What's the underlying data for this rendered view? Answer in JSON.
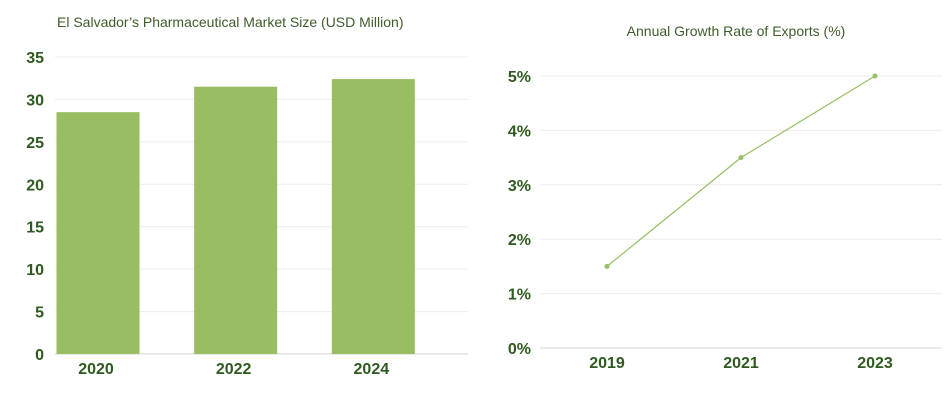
{
  "chart_data": [
    {
      "type": "bar",
      "title": "El Salvador’s Pharmaceutical Market Size (USD Million)",
      "categories": [
        "2020",
        "2022",
        "2024"
      ],
      "values": [
        28.5,
        31.5,
        32.4
      ],
      "ylim": [
        0,
        35
      ],
      "yticks": [
        "0",
        "5",
        "10",
        "15",
        "20",
        "25",
        "30",
        "35"
      ],
      "ytick_values": [
        0,
        5,
        10,
        15,
        20,
        25,
        30,
        35
      ],
      "color": "#98bd63"
    },
    {
      "type": "line",
      "title": "Annual Growth Rate of Exports (%)",
      "categories": [
        "2019",
        "2021",
        "2023"
      ],
      "values": [
        1.5,
        3.5,
        5.0
      ],
      "ylim": [
        0,
        5
      ],
      "yticks": [
        "0%",
        "1%",
        "2%",
        "3%",
        "4%",
        "5%"
      ],
      "ytick_values": [
        0,
        1,
        2,
        3,
        4,
        5
      ],
      "color": "#98bd63"
    }
  ]
}
